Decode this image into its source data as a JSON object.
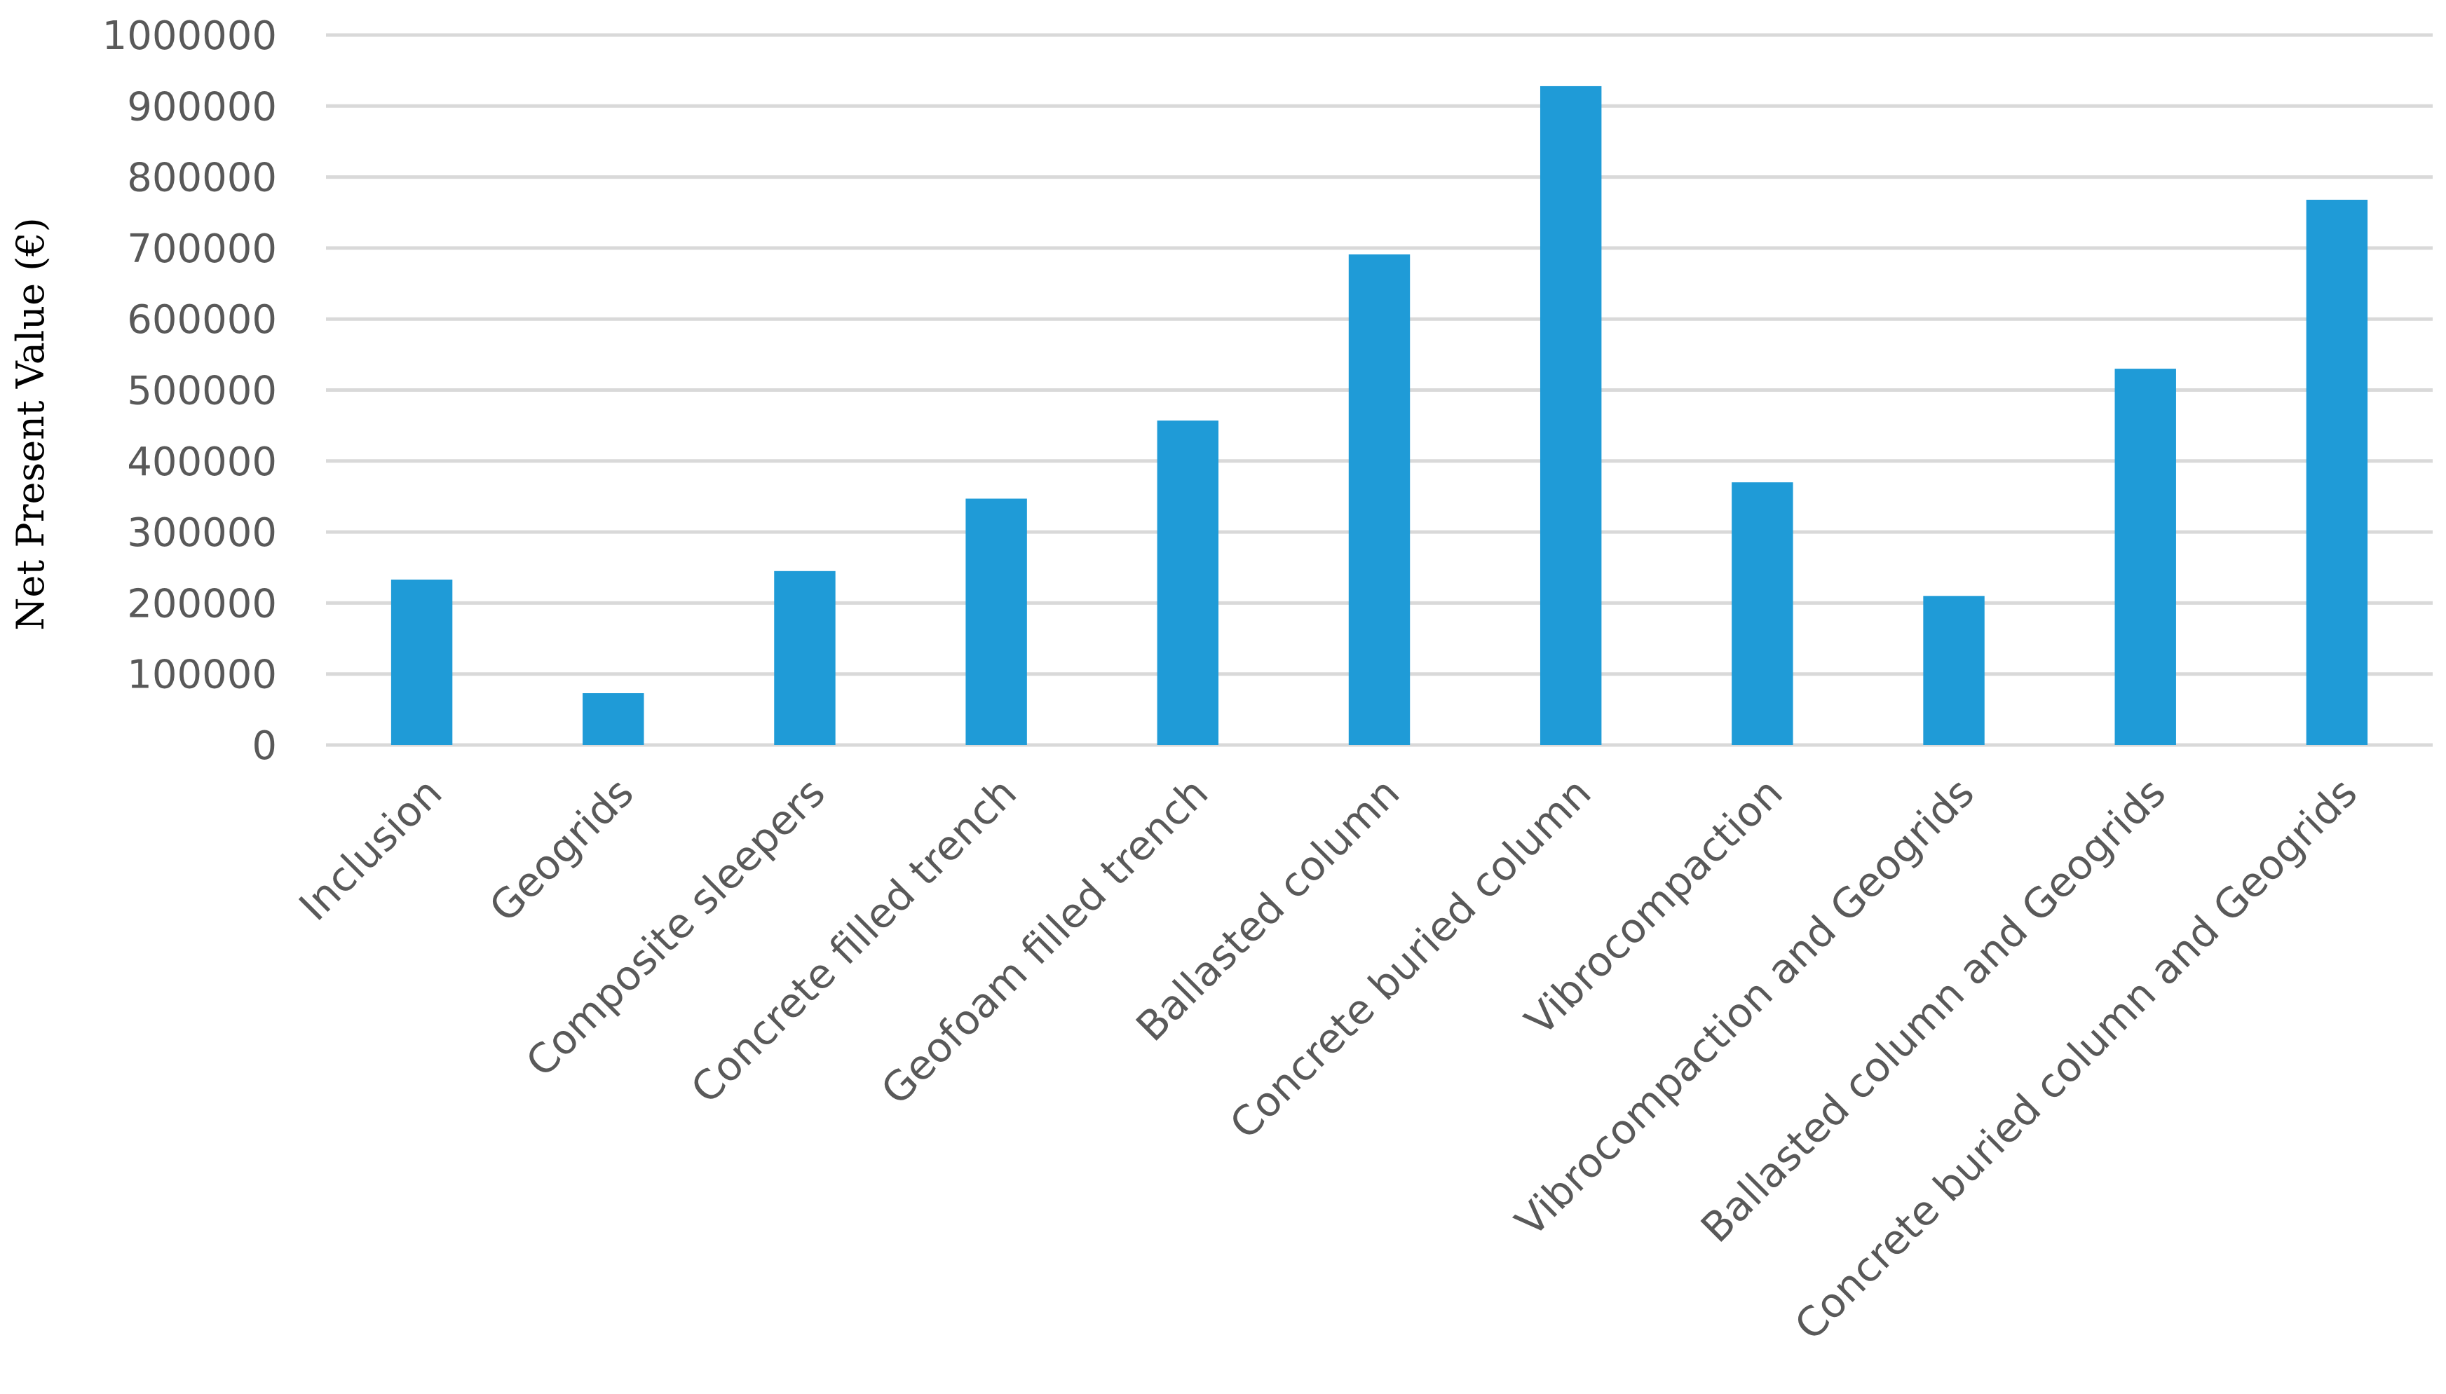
{
  "chart_data": {
    "type": "bar",
    "categories": [
      "Inclusion",
      "Geogrids",
      "Composite sleepers",
      "Concrete filled trench",
      "Geofoam filled trench",
      "Ballasted column",
      "Concrete buried column",
      "Vibrocompaction",
      "Vibrocompaction and Geogrids",
      "Ballasted column and Geogrids",
      "Concrete buried column and Geogrids"
    ],
    "values": [
      233000,
      73000,
      245000,
      347000,
      457000,
      691000,
      928000,
      370000,
      210000,
      530000,
      768000
    ],
    "ylabel": "Net Present Value (€)",
    "xlabel": "",
    "ylim": [
      0,
      1000000
    ],
    "yticks": [
      "0",
      "100000",
      "200000",
      "300000",
      "400000",
      "500000",
      "600000",
      "700000",
      "800000",
      "900000",
      "1000000"
    ],
    "grid": true,
    "colors": {
      "bar": "#1f9bd7",
      "grid": "#d9d9d9",
      "tick_text": "#595959"
    }
  }
}
